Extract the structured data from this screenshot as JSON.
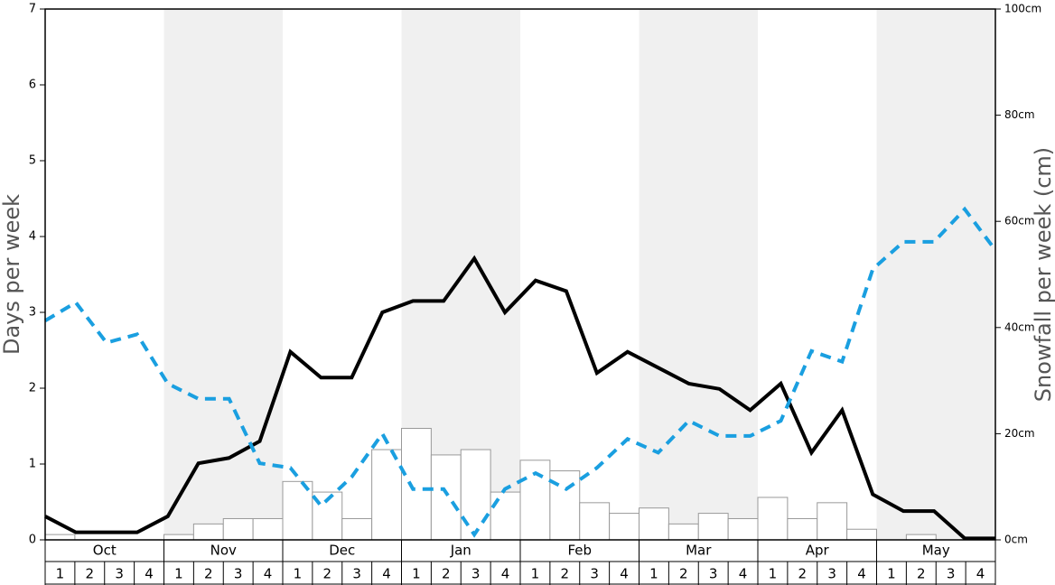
{
  "chart_data": {
    "type": "combo",
    "ylabel": "Days per week",
    "y2label": "Snowfall per week (cm)",
    "months": [
      "Oct",
      "Nov",
      "Dec",
      "Jan",
      "Feb",
      "Mar",
      "Apr",
      "May"
    ],
    "weeks": [
      "1",
      "2",
      "3",
      "4"
    ],
    "ylim": [
      0,
      7
    ],
    "yticks": [
      0,
      1,
      2,
      3,
      4,
      5,
      6,
      7
    ],
    "y2lim": [
      0,
      100
    ],
    "y2ticks": [
      {
        "value": 0,
        "label": "0cm"
      },
      {
        "value": 20,
        "label": "20cm"
      },
      {
        "value": 40,
        "label": "40cm"
      },
      {
        "value": 60,
        "label": "60cm"
      },
      {
        "value": 80,
        "label": "80cm"
      },
      {
        "value": 100,
        "label": "100cm"
      }
    ],
    "series": [
      {
        "kind": "bar",
        "axis": "y2",
        "color": "#ffffff",
        "values": [
          1,
          0,
          0,
          0,
          1,
          3,
          4,
          4,
          11,
          9,
          4,
          17,
          21,
          16,
          17,
          9,
          15,
          13,
          7,
          5,
          6,
          3,
          5,
          4,
          8,
          4,
          7,
          2,
          0,
          1,
          0,
          0
        ]
      },
      {
        "kind": "line",
        "color": "#000000",
        "values": [
          0.31,
          0.1,
          0.1,
          0.1,
          0.31,
          1.01,
          1.08,
          1.3,
          2.48,
          2.14,
          2.14,
          3.0,
          3.15,
          3.15,
          3.71,
          3.0,
          3.42,
          3.28,
          2.2,
          2.48,
          2.27,
          2.06,
          1.99,
          1.71,
          2.06,
          1.15,
          1.71,
          0.6,
          0.38,
          0.38,
          0.02,
          0.02
        ]
      },
      {
        "kind": "dashed",
        "color": "#1a9fe0",
        "values": [
          2.89,
          3.13,
          2.6,
          2.71,
          2.06,
          1.86,
          1.86,
          1.01,
          0.95,
          0.45,
          0.83,
          1.4,
          0.67,
          0.67,
          0.07,
          0.67,
          0.88,
          0.67,
          0.95,
          1.33,
          1.15,
          1.57,
          1.37,
          1.37,
          1.57,
          2.49,
          2.35,
          3.57,
          3.93,
          3.93,
          4.36,
          3.82
        ]
      }
    ]
  }
}
